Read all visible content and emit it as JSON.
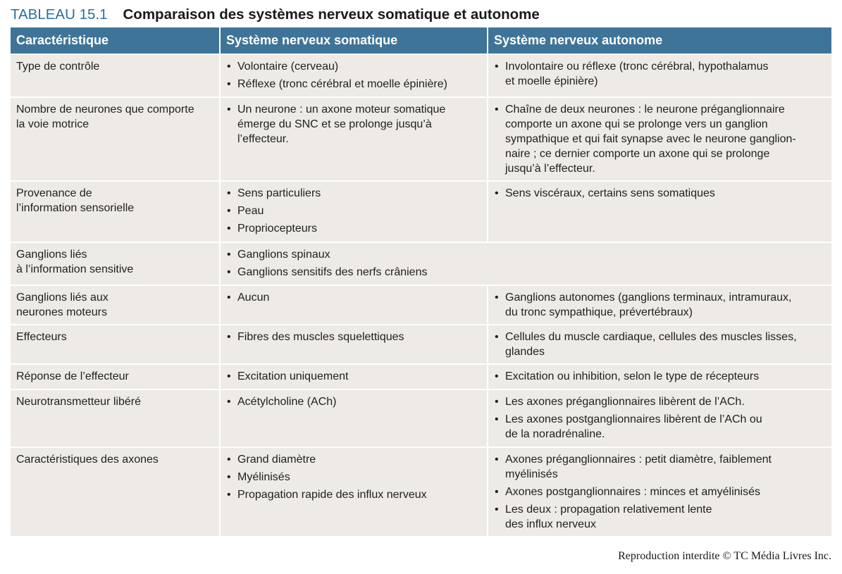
{
  "title": {
    "number": "TABLEAU 15.1",
    "text": "Comparaison des systèmes nerveux somatique et autonome"
  },
  "headers": [
    "Caractéristique",
    "Système nerveux somatique",
    "Système nerveux autonome"
  ],
  "rows": [
    {
      "label": "Type de contrôle",
      "somatic": [
        "Volontaire (cerveau)",
        "Réflexe (tronc cérébral et moelle épinière)"
      ],
      "autonomic": [
        "Involontaire ou réflexe (tronc cérébral, hypothalamus\net moelle épinière)"
      ]
    },
    {
      "label": "Nombre de neurones que comporte\nla voie motrice",
      "somatic": [
        "Un neurone : un axone moteur somatique\némerge du SNC et se prolonge jusqu’à\nl’effecteur."
      ],
      "autonomic": [
        "Chaîne de deux neurones : le neurone préganglionnaire\ncomporte un axone qui se prolonge vers un ganglion\nsympathique et qui fait synapse avec le neurone ganglion-\nnaire ; ce dernier comporte un axone qui se prolonge\njusqu’à l’effecteur."
      ]
    },
    {
      "label": "Provenance de\nl’information sensorielle",
      "somatic": [
        "Sens particuliers",
        "Peau",
        "Propriocepteurs"
      ],
      "autonomic": [
        "Sens viscéraux, certains sens somatiques"
      ]
    },
    {
      "label": "Ganglions liés\nà l’information sensitive",
      "merged": [
        "Ganglions spinaux",
        "Ganglions sensitifs des nerfs crâniens"
      ]
    },
    {
      "label": "Ganglions liés aux\nneurones moteurs",
      "somatic": [
        "Aucun"
      ],
      "autonomic": [
        "Ganglions autonomes (ganglions terminaux, intramuraux,\ndu tronc sympathique, prévertébraux)"
      ]
    },
    {
      "label": "Effecteurs",
      "somatic": [
        "Fibres des muscles squelettiques"
      ],
      "autonomic": [
        "Cellules du muscle cardiaque, cellules des muscles lisses,\nglandes"
      ]
    },
    {
      "label": "Réponse de l’effecteur",
      "somatic": [
        "Excitation uniquement"
      ],
      "autonomic": [
        "Excitation ou inhibition, selon le type de récepteurs"
      ]
    },
    {
      "label": "Neurotransmetteur libéré",
      "somatic": [
        "Acétylcholine (ACh)"
      ],
      "autonomic": [
        "Les axones préganglionnaires libèrent de l’ACh.",
        "Les axones postganglionnaires libèrent de l’ACh ou\nde la noradrénaline."
      ]
    },
    {
      "label": "Caractéristiques des axones",
      "somatic": [
        "Grand diamètre",
        "Myélinisés",
        "Propagation rapide des influx nerveux"
      ],
      "autonomic": [
        "Axones préganglionnaires : petit diamètre, faiblement\nmyélinisés",
        "Axones postganglionnaires : minces et amyélinisés",
        "Les deux : propagation relativement lente\ndes influx nerveux"
      ]
    }
  ],
  "footer": "Reproduction interdite © TC Média Livres Inc."
}
